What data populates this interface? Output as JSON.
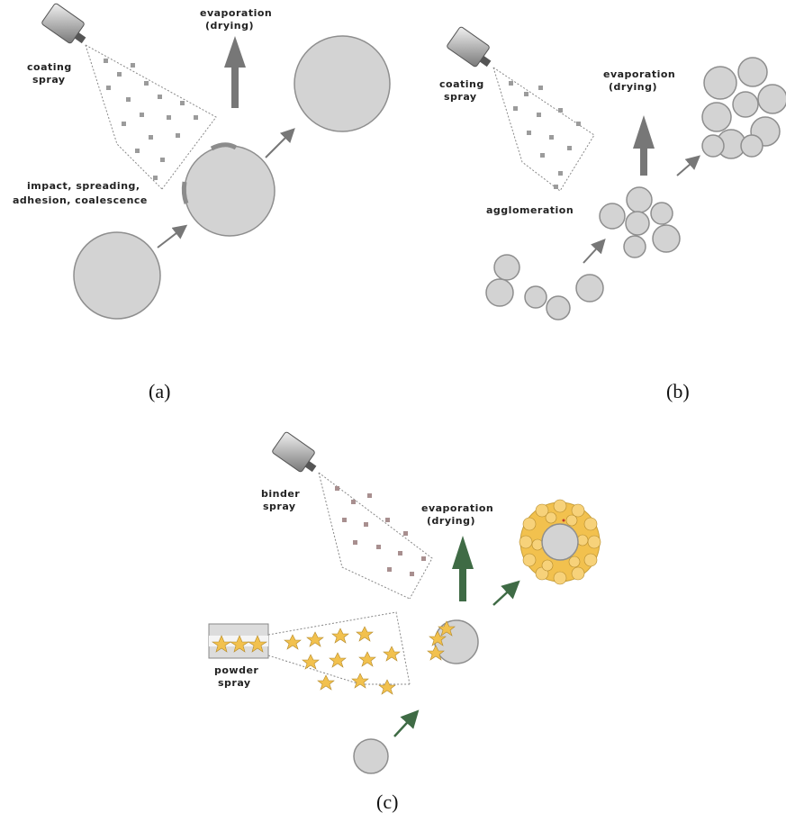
{
  "panel_a": {
    "caption": "(a)",
    "spray_label": [
      "coating",
      "spray"
    ],
    "evap_label": [
      "evaporation",
      "(drying)"
    ],
    "impact_label": [
      "impact, spreading,",
      "adhesion, coalescence"
    ]
  },
  "panel_b": {
    "caption": "(b)",
    "spray_label": [
      "coating",
      "spray"
    ],
    "evap_label": [
      "evaporation",
      "(drying)"
    ],
    "agglom_label": "agglomeration"
  },
  "panel_c": {
    "caption": "(c)",
    "binder_label": [
      "binder",
      "spray"
    ],
    "evap_label": [
      "evaporation",
      "(drying)"
    ],
    "powder_label": [
      "powder",
      "spray"
    ]
  },
  "colors": {
    "particle": "#d3d3d3",
    "arrow_gray": "#777777",
    "arrow_green": "#3f6b45",
    "powder_yellow": "#f2c14e"
  }
}
